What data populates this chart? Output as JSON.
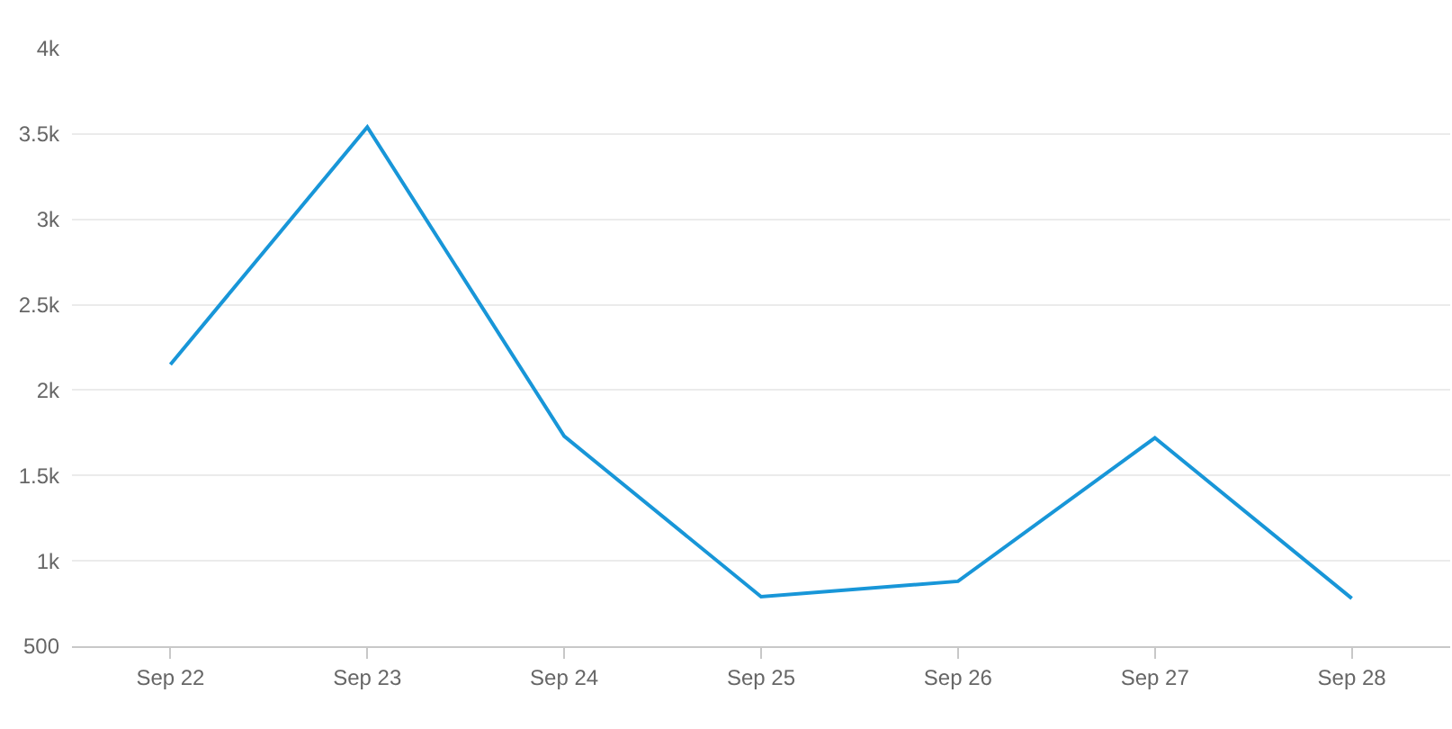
{
  "chart_data": {
    "type": "line",
    "categories": [
      "Sep 22",
      "Sep 23",
      "Sep 24",
      "Sep 25",
      "Sep 26",
      "Sep 27",
      "Sep 28"
    ],
    "series": [
      {
        "color": "#1896d8",
        "values": [
          2150,
          3540,
          1730,
          790,
          880,
          1720,
          780
        ]
      }
    ],
    "ylim": [
      500,
      4000
    ],
    "yticks": [
      500,
      {
        "value": 1000,
        "label": "1k"
      },
      {
        "value": 1500,
        "label": "1.5k"
      },
      {
        "value": 2000,
        "label": "2k"
      },
      {
        "value": 2500,
        "label": "2.5k"
      },
      {
        "value": 3000,
        "label": "3k"
      },
      {
        "value": 3500,
        "label": "3.5k"
      },
      {
        "value": 4000,
        "label": "4k"
      }
    ],
    "grid": "y",
    "legend": false,
    "marker": "none",
    "line_style": "solid"
  }
}
